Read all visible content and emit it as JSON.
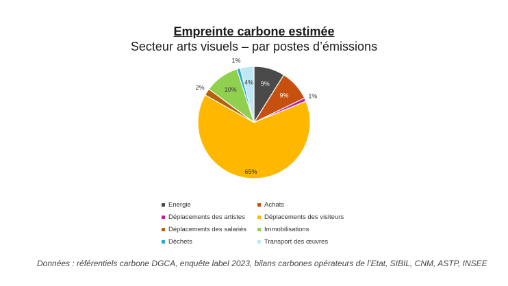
{
  "chart_data": {
    "type": "pie",
    "title": "Empreinte carbone estimée",
    "subtitle": "Secteur arts visuels – par postes d’émissions",
    "slices": [
      {
        "label": "Energie",
        "value": 9,
        "color": "#4a4a4a",
        "data_label": "9%"
      },
      {
        "label": "Achats",
        "value": 9,
        "color": "#c8500e",
        "data_label": "9%"
      },
      {
        "label": "Déplacements des artistes",
        "value": 1,
        "color": "#c0219a",
        "data_label": "1%"
      },
      {
        "label": "Déplacements des visiteurs",
        "value": 65,
        "color": "#ffb700",
        "data_label": "65%"
      },
      {
        "label": "Déplacements des salariés",
        "value": 2,
        "color": "#b4620a",
        "data_label": "2%"
      },
      {
        "label": "Immobilisations",
        "value": 10,
        "color": "#8fd14f",
        "data_label": "10%"
      },
      {
        "label": "Déchets",
        "value": 1,
        "color": "#2aa7d6",
        "data_label": "1%"
      },
      {
        "label": "Transport des œuvres",
        "value": 4,
        "color": "#bfe6f3",
        "data_label": "4%"
      }
    ],
    "legend_position": "bottom"
  },
  "source": "Données : référentiels carbone DGCA, enquête label 2023, bilans carbones opérateurs de l’Etat, SIBIL, CNM, ASTP, INSEE"
}
